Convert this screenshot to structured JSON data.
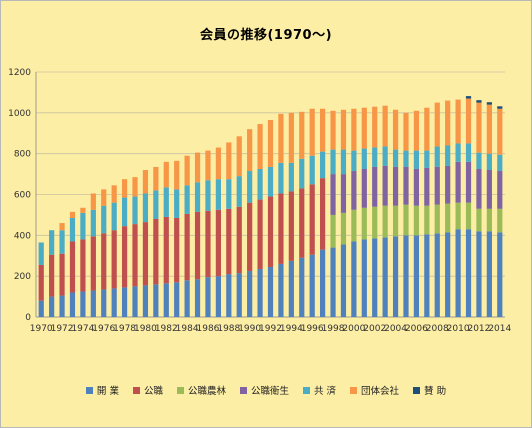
{
  "chart_data": {
    "type": "bar",
    "stacked": true,
    "title": "会員の推移(1970〜)",
    "xlabel": "",
    "ylabel": "",
    "ylim": [
      0,
      1200
    ],
    "yticks": [
      "0",
      "200",
      "400",
      "600",
      "800",
      "1000",
      "1200"
    ],
    "grid": true,
    "legend_position": "bottom",
    "categories": [
      "1970",
      "1971",
      "1972",
      "1973",
      "1974",
      "1975",
      "1976",
      "1977",
      "1978",
      "1979",
      "1980",
      "1981",
      "1982",
      "1983",
      "1984",
      "1985",
      "1986",
      "1987",
      "1988",
      "1989",
      "1990",
      "1991",
      "1992",
      "1993",
      "1994",
      "1995",
      "1996",
      "1997",
      "1998",
      "1999",
      "2000",
      "2001",
      "2002",
      "2003",
      "2004",
      "2005",
      "2006",
      "2007",
      "2008",
      "2009",
      "2010",
      "2011",
      "2012",
      "2013",
      "2014"
    ],
    "x_tick_labels": [
      "1970",
      "1972",
      "1974",
      "1976",
      "1978",
      "1980",
      "1982",
      "1984",
      "1986",
      "1988",
      "1990",
      "1992",
      "1994",
      "1996",
      "1998",
      "2000",
      "2002",
      "2004",
      "2006",
      "2008",
      "2010",
      "2012",
      "2014"
    ],
    "series": [
      {
        "name": "開 業",
        "color": "#4f81bd",
        "values": [
          80,
          100,
          105,
          120,
          125,
          130,
          135,
          140,
          145,
          150,
          155,
          160,
          165,
          170,
          180,
          185,
          195,
          200,
          210,
          215,
          225,
          235,
          245,
          260,
          275,
          290,
          305,
          330,
          340,
          355,
          370,
          380,
          385,
          390,
          395,
          400,
          400,
          405,
          410,
          415,
          430,
          430,
          420,
          420,
          415
        ]
      },
      {
        "name": "公職",
        "color": "#c0504d",
        "values": [
          175,
          205,
          205,
          250,
          255,
          265,
          275,
          285,
          300,
          305,
          310,
          320,
          325,
          315,
          325,
          330,
          325,
          325,
          320,
          325,
          335,
          340,
          345,
          345,
          340,
          340,
          345,
          350,
          0,
          0,
          0,
          0,
          0,
          0,
          0,
          0,
          0,
          0,
          0,
          0,
          0,
          0,
          0,
          0,
          0
        ]
      },
      {
        "name": "公職農林",
        "color": "#9bbb59",
        "values": [
          0,
          0,
          0,
          0,
          0,
          0,
          0,
          0,
          0,
          0,
          0,
          0,
          0,
          0,
          0,
          0,
          0,
          0,
          0,
          0,
          0,
          0,
          0,
          0,
          0,
          0,
          0,
          0,
          160,
          155,
          155,
          155,
          155,
          155,
          150,
          150,
          145,
          140,
          140,
          140,
          130,
          130,
          110,
          110,
          115
        ]
      },
      {
        "name": "公職衛生",
        "color": "#8064a2",
        "values": [
          0,
          0,
          0,
          0,
          0,
          0,
          0,
          0,
          0,
          0,
          0,
          0,
          0,
          0,
          0,
          0,
          0,
          0,
          0,
          0,
          0,
          0,
          0,
          0,
          0,
          0,
          0,
          0,
          200,
          190,
          190,
          190,
          195,
          195,
          190,
          185,
          180,
          185,
          185,
          185,
          200,
          200,
          195,
          190,
          185
        ]
      },
      {
        "name": "共 済",
        "color": "#4bacc6",
        "values": [
          110,
          120,
          115,
          115,
          130,
          130,
          135,
          135,
          140,
          135,
          140,
          140,
          145,
          140,
          140,
          145,
          150,
          150,
          145,
          150,
          155,
          150,
          145,
          150,
          140,
          145,
          140,
          130,
          120,
          120,
          100,
          100,
          95,
          95,
          85,
          80,
          90,
          85,
          100,
          100,
          90,
          90,
          80,
          80,
          80
        ]
      },
      {
        "name": "団体会社",
        "color": "#f79646",
        "values": [
          0,
          0,
          35,
          30,
          25,
          80,
          80,
          85,
          90,
          95,
          115,
          115,
          125,
          140,
          145,
          145,
          145,
          155,
          180,
          195,
          205,
          220,
          230,
          240,
          245,
          230,
          230,
          210,
          190,
          195,
          205,
          200,
          200,
          200,
          195,
          185,
          195,
          210,
          215,
          220,
          215,
          220,
          245,
          240,
          225
        ]
      },
      {
        "name": "賛 助",
        "color": "#1f4e79",
        "values": [
          0,
          0,
          0,
          0,
          0,
          0,
          0,
          0,
          0,
          0,
          0,
          0,
          0,
          0,
          0,
          0,
          0,
          0,
          0,
          0,
          0,
          0,
          0,
          0,
          0,
          0,
          0,
          0,
          0,
          0,
          0,
          0,
          0,
          0,
          0,
          0,
          0,
          0,
          0,
          0,
          0,
          12,
          12,
          12,
          12
        ]
      }
    ]
  }
}
